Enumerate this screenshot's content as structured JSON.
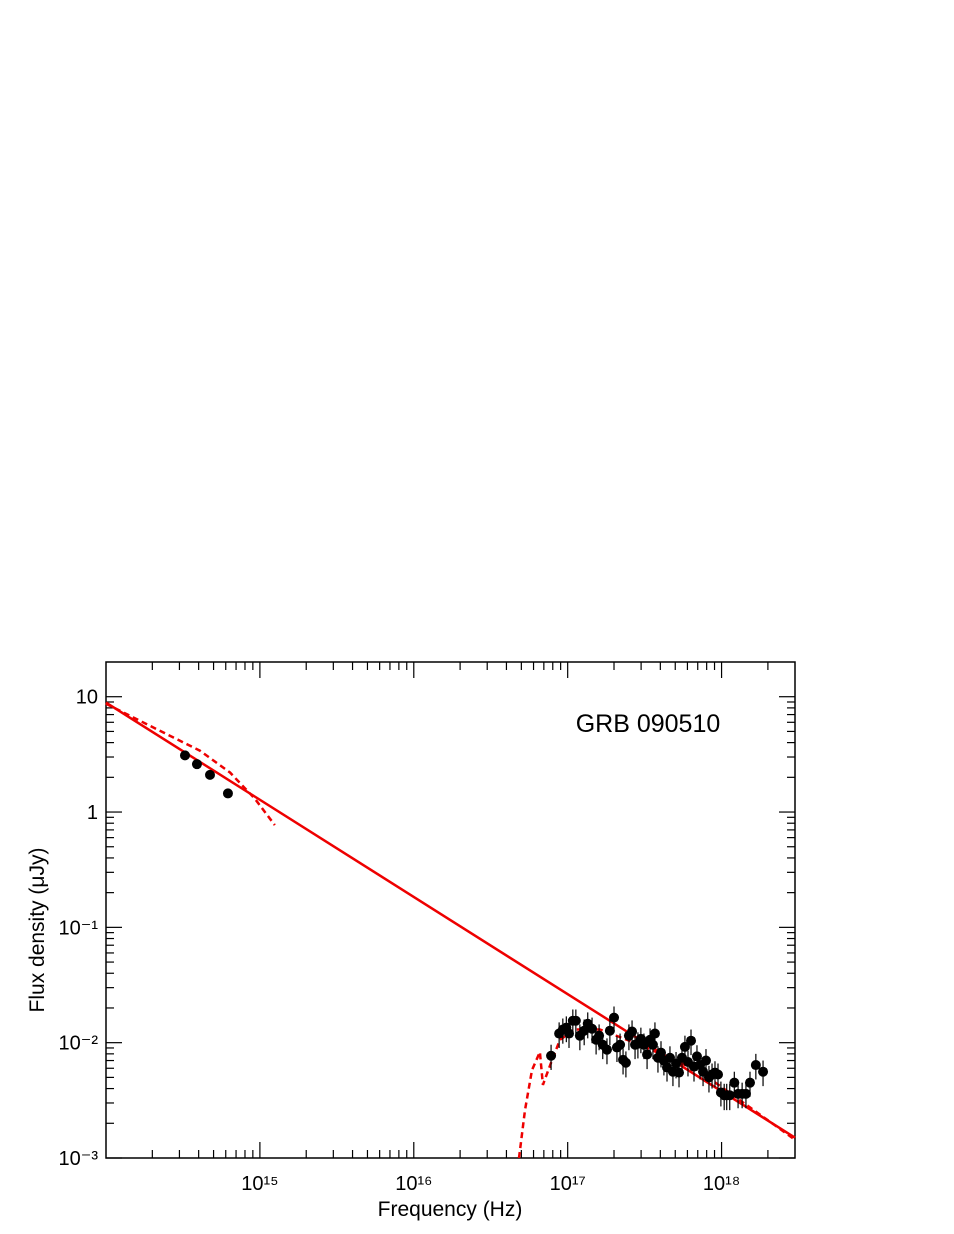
{
  "chart_data": {
    "type": "scatter",
    "annotation": "GRB 090510",
    "xlabel": "Frequency (Hz)",
    "ylabel": "Flux density (μJy)",
    "xscale": "log",
    "yscale": "log",
    "xlim": [
      100000000000000.0,
      3e+18
    ],
    "ylim": [
      0.001,
      20
    ],
    "xticks": [
      {
        "value": 1000000000000000.0,
        "label": "10¹⁵"
      },
      {
        "value": 1e+16,
        "label": "10¹⁶"
      },
      {
        "value": 1e+17,
        "label": "10¹⁷"
      },
      {
        "value": 1e+18,
        "label": "10¹⁸"
      }
    ],
    "yticks": [
      {
        "value": 0.001,
        "label": "10⁻³"
      },
      {
        "value": 0.01,
        "label": "10⁻²"
      },
      {
        "value": 0.1,
        "label": "10⁻¹"
      },
      1,
      10
    ],
    "series": [
      {
        "type": "line",
        "style": "solid",
        "color": "#ee0000",
        "x": [
          100000000000000.0,
          3e+18
        ],
        "y": [
          8.9,
          0.0015
        ]
      },
      {
        "type": "line",
        "style": "dashed",
        "color": "#ee0000",
        "x": [
          100000000000000.0,
          193000000000000.0,
          408000000000000.0,
          639000000000000.0,
          930000000000000.0,
          1250000000000000.0
        ],
        "y": [
          8.7,
          5.6,
          3.4,
          2.2,
          1.3,
          0.77
        ]
      },
      {
        "type": "line",
        "style": "dashed",
        "color": "#ee0000",
        "x": [
          4.83e+16,
          5.28e+16,
          5.86e+16,
          6.6e+16,
          6.9e+16,
          7.7e+16,
          8.9e+16,
          1.11e+17,
          1.62e+17,
          2.95e+17,
          7.25e+17,
          3e+18
        ],
        "y": [
          0.001,
          0.0026,
          0.0058,
          0.0083,
          0.0043,
          0.0064,
          0.0106,
          0.013,
          0.013,
          0.0096,
          0.0056,
          0.00144
        ]
      },
      {
        "type": "scatter",
        "color": "#000000",
        "x": [
          326000000000000.0,
          390000000000000.0,
          474000000000000.0,
          620000000000000.0
        ],
        "y": [
          3.1,
          2.6,
          2.1,
          1.45
        ]
      },
      {
        "type": "scatter",
        "color": "#000000",
        "x": [
          7.8e+16,
          8.8e+16,
          9.3e+16,
          9.8e+16,
          1.02e+17,
          1.08e+17,
          1.13e+17,
          1.2e+17,
          1.28e+17,
          1.35e+17,
          1.44e+17,
          1.53e+17,
          1.6e+17,
          1.69e+17,
          1.8e+17,
          1.88e+17,
          2e+17,
          2.09e+17,
          2.19e+17,
          2.29e+17,
          2.39e+17,
          2.5e+17,
          2.62e+17,
          2.74e+17,
          2.86e+17,
          2.99e+17,
          3.13e+17,
          3.28e+17,
          3.43e+17,
          3.58e+17,
          3.69e+17,
          3.86e+17,
          4.04e+17,
          4.22e+17,
          4.42e+17,
          4.62e+17,
          4.83e+17,
          5.06e+17,
          5.29e+17,
          5.53e+17,
          5.78e+17,
          6.05e+17,
          6.33e+17,
          6.62e+17,
          6.92e+17,
          7.25e+17,
          7.58e+17,
          7.92e+17,
          8.28e+17,
          8.67e+17,
          9.06e+17,
          9.48e+17,
          9.9e+17,
          1.04e+18,
          1.08e+18,
          1.13e+18,
          1.21e+18,
          1.28e+18,
          1.36e+18,
          1.44e+18,
          1.53e+18,
          1.67e+18,
          1.86e+18
        ],
        "y": [
          0.0077,
          0.012,
          0.013,
          0.0135,
          0.012,
          0.0155,
          0.0155,
          0.0115,
          0.0127,
          0.0146,
          0.0132,
          0.0106,
          0.0115,
          0.0096,
          0.0087,
          0.0127,
          0.0165,
          0.0091,
          0.0096,
          0.0071,
          0.0067,
          0.0115,
          0.0125,
          0.0096,
          0.0098,
          0.0108,
          0.0096,
          0.0079,
          0.0106,
          0.0096,
          0.012,
          0.0074,
          0.0082,
          0.007,
          0.0061,
          0.0074,
          0.0056,
          0.0066,
          0.0055,
          0.0074,
          0.0092,
          0.0068,
          0.0104,
          0.0062,
          0.0076,
          0.0064,
          0.0056,
          0.007,
          0.005,
          0.0053,
          0.0055,
          0.0053,
          0.0037,
          0.0035,
          0.0035,
          0.0035,
          0.0045,
          0.0036,
          0.0036,
          0.0036,
          0.0045,
          0.0064,
          0.0056
        ],
        "yerr": [
          0.0019,
          0.003,
          0.0032,
          0.0034,
          0.003,
          0.0039,
          0.0039,
          0.0029,
          0.0032,
          0.0037,
          0.0033,
          0.0027,
          0.0029,
          0.0024,
          0.0022,
          0.0032,
          0.0041,
          0.0023,
          0.0024,
          0.0018,
          0.0017,
          0.0029,
          0.0031,
          0.0024,
          0.0025,
          0.0027,
          0.0024,
          0.002,
          0.0027,
          0.0024,
          0.003,
          0.0019,
          0.0021,
          0.0018,
          0.0015,
          0.0019,
          0.0014,
          0.0017,
          0.0014,
          0.0019,
          0.0023,
          0.0017,
          0.0026,
          0.0016,
          0.0019,
          0.0016,
          0.0014,
          0.0018,
          0.0013,
          0.0013,
          0.0014,
          0.0013,
          0.0009,
          0.0009,
          0.0009,
          0.0009,
          0.0011,
          0.0009,
          0.0009,
          0.0009,
          0.0011,
          0.0016,
          0.0014
        ]
      }
    ]
  }
}
